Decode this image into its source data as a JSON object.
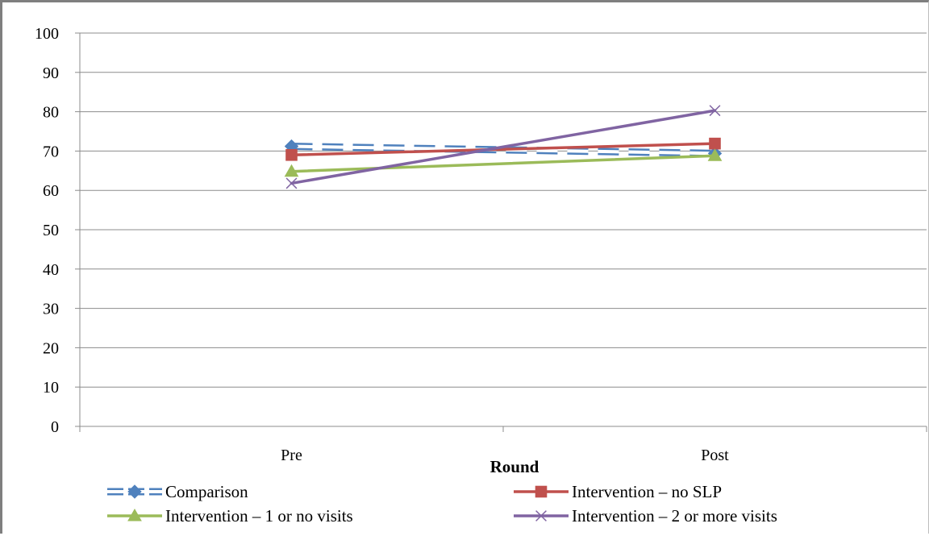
{
  "chart_data": {
    "type": "line",
    "categories": [
      "Pre",
      "Post"
    ],
    "xlabel": "Round",
    "ylabel": "",
    "title": "",
    "ylim": [
      0,
      100
    ],
    "y_ticks": [
      "0",
      "10",
      "20",
      "30",
      "40",
      "50",
      "60",
      "70",
      "80",
      "90",
      "100"
    ],
    "grid": true,
    "legend_position": "bottom",
    "series": [
      {
        "name": "Comparison",
        "values": [
          71.2,
          69.4
        ],
        "color": "#4f81bd",
        "marker": "diamond",
        "dash": "dashed-hollow"
      },
      {
        "name": "Intervention – no SLP",
        "values": [
          69.0,
          71.9
        ],
        "color": "#c0504d",
        "marker": "square",
        "dash": "solid"
      },
      {
        "name": "Intervention – 1 or no visits",
        "values": [
          64.8,
          68.8
        ],
        "color": "#9bbb59",
        "marker": "triangle",
        "dash": "solid"
      },
      {
        "name": "Intervention – 2 or more visits",
        "values": [
          61.8,
          80.3
        ],
        "color": "#8064a2",
        "marker": "x",
        "dash": "solid"
      }
    ]
  }
}
